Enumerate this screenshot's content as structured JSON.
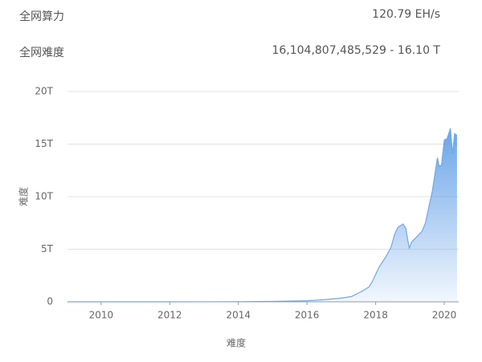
{
  "header": {
    "hashrate_label": "全网算力",
    "hashrate_value": "120.79 EH/s",
    "difficulty_label": "全网难度",
    "difficulty_value": "16,104,807,485,529 - 16.10 T"
  },
  "chart_data": {
    "type": "area",
    "y_label": "难度",
    "x_label": "难度",
    "xlim": [
      2009.02,
      2020.42
    ],
    "xticks": [
      2010,
      2012,
      2014,
      2016,
      2018,
      2020
    ],
    "ylim": [
      0,
      20
    ],
    "yticks": [
      0,
      {
        "value": 5,
        "label": "5T"
      },
      {
        "value": 10,
        "label": "10T"
      },
      {
        "value": 15,
        "label": "15T"
      },
      {
        "value": 20,
        "label": "20T"
      }
    ],
    "grid": true,
    "series": [
      {
        "color": "#6fa8e6",
        "x": [
          2009.02,
          2012.0,
          2014.0,
          2015.0,
          2016.0,
          2016.5,
          2017.0,
          2017.3,
          2017.6,
          2017.8,
          2017.9,
          2018.0,
          2018.1,
          2018.3,
          2018.45,
          2018.55,
          2018.65,
          2018.8,
          2018.88,
          2018.93,
          2018.98,
          2019.05,
          2019.2,
          2019.35,
          2019.45,
          2019.55,
          2019.65,
          2019.72,
          2019.8,
          2019.85,
          2019.92,
          2020.0,
          2020.08,
          2020.18,
          2020.24,
          2020.3,
          2020.37
        ],
        "values": [
          0,
          0,
          0.01,
          0.04,
          0.1,
          0.2,
          0.35,
          0.5,
          1.0,
          1.4,
          1.9,
          2.6,
          3.3,
          4.3,
          5.2,
          6.4,
          7.1,
          7.4,
          7.0,
          6.0,
          5.1,
          5.7,
          6.2,
          6.7,
          7.5,
          9.0,
          10.5,
          12.0,
          13.7,
          12.9,
          13.0,
          15.4,
          15.5,
          16.5,
          14.0,
          16.0,
          15.8
        ]
      }
    ]
  }
}
